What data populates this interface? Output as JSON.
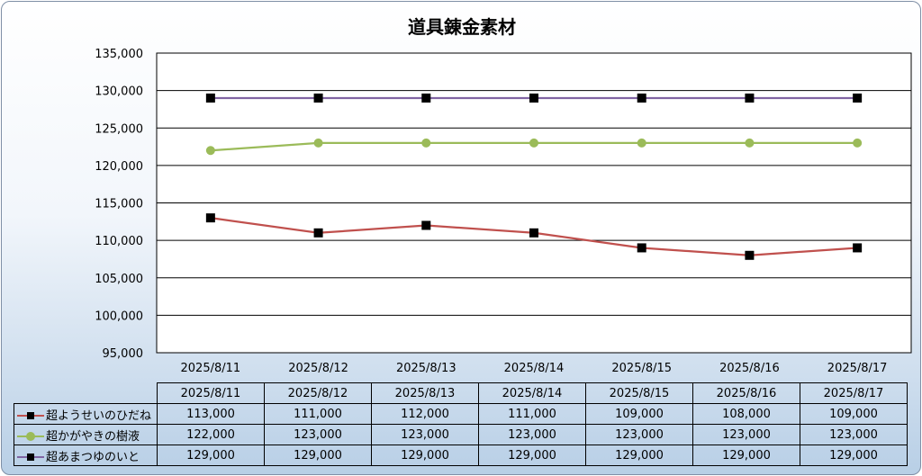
{
  "chart_data": {
    "type": "line",
    "title": "道具錬金素材",
    "xlabel": "",
    "ylabel": "",
    "categories": [
      "2025/8/11",
      "2025/8/12",
      "2025/8/13",
      "2025/8/14",
      "2025/8/15",
      "2025/8/16",
      "2025/8/17"
    ],
    "ylim": [
      95000,
      135000
    ],
    "ytick_labels": [
      "135,000",
      "130,000",
      "125,000",
      "120,000",
      "115,000",
      "110,000",
      "105,000",
      "100,000",
      "95,000"
    ],
    "ytick_values": [
      135000,
      130000,
      125000,
      120000,
      115000,
      110000,
      105000,
      100000,
      95000
    ],
    "grid": true,
    "legend_placement": "data-table-bottom",
    "series": [
      {
        "name": "超ようせいのひだね",
        "color": "#c0504d",
        "marker": "square",
        "values": [
          113000,
          111000,
          112000,
          111000,
          109000,
          108000,
          109000
        ],
        "labels": [
          "113,000",
          "111,000",
          "112,000",
          "111,000",
          "109,000",
          "108,000",
          "109,000"
        ]
      },
      {
        "name": "超かがやきの樹液",
        "color": "#9bbb59",
        "marker": "circle",
        "values": [
          122000,
          123000,
          123000,
          123000,
          123000,
          123000,
          123000
        ],
        "labels": [
          "122,000",
          "123,000",
          "123,000",
          "123,000",
          "123,000",
          "123,000",
          "123,000"
        ]
      },
      {
        "name": "超あまつゆのいと",
        "color": "#8064a2",
        "marker": "square",
        "values": [
          129000,
          129000,
          129000,
          129000,
          129000,
          129000,
          129000
        ],
        "labels": [
          "129,000",
          "129,000",
          "129,000",
          "129,000",
          "129,000",
          "129,000",
          "129,000"
        ]
      }
    ]
  }
}
